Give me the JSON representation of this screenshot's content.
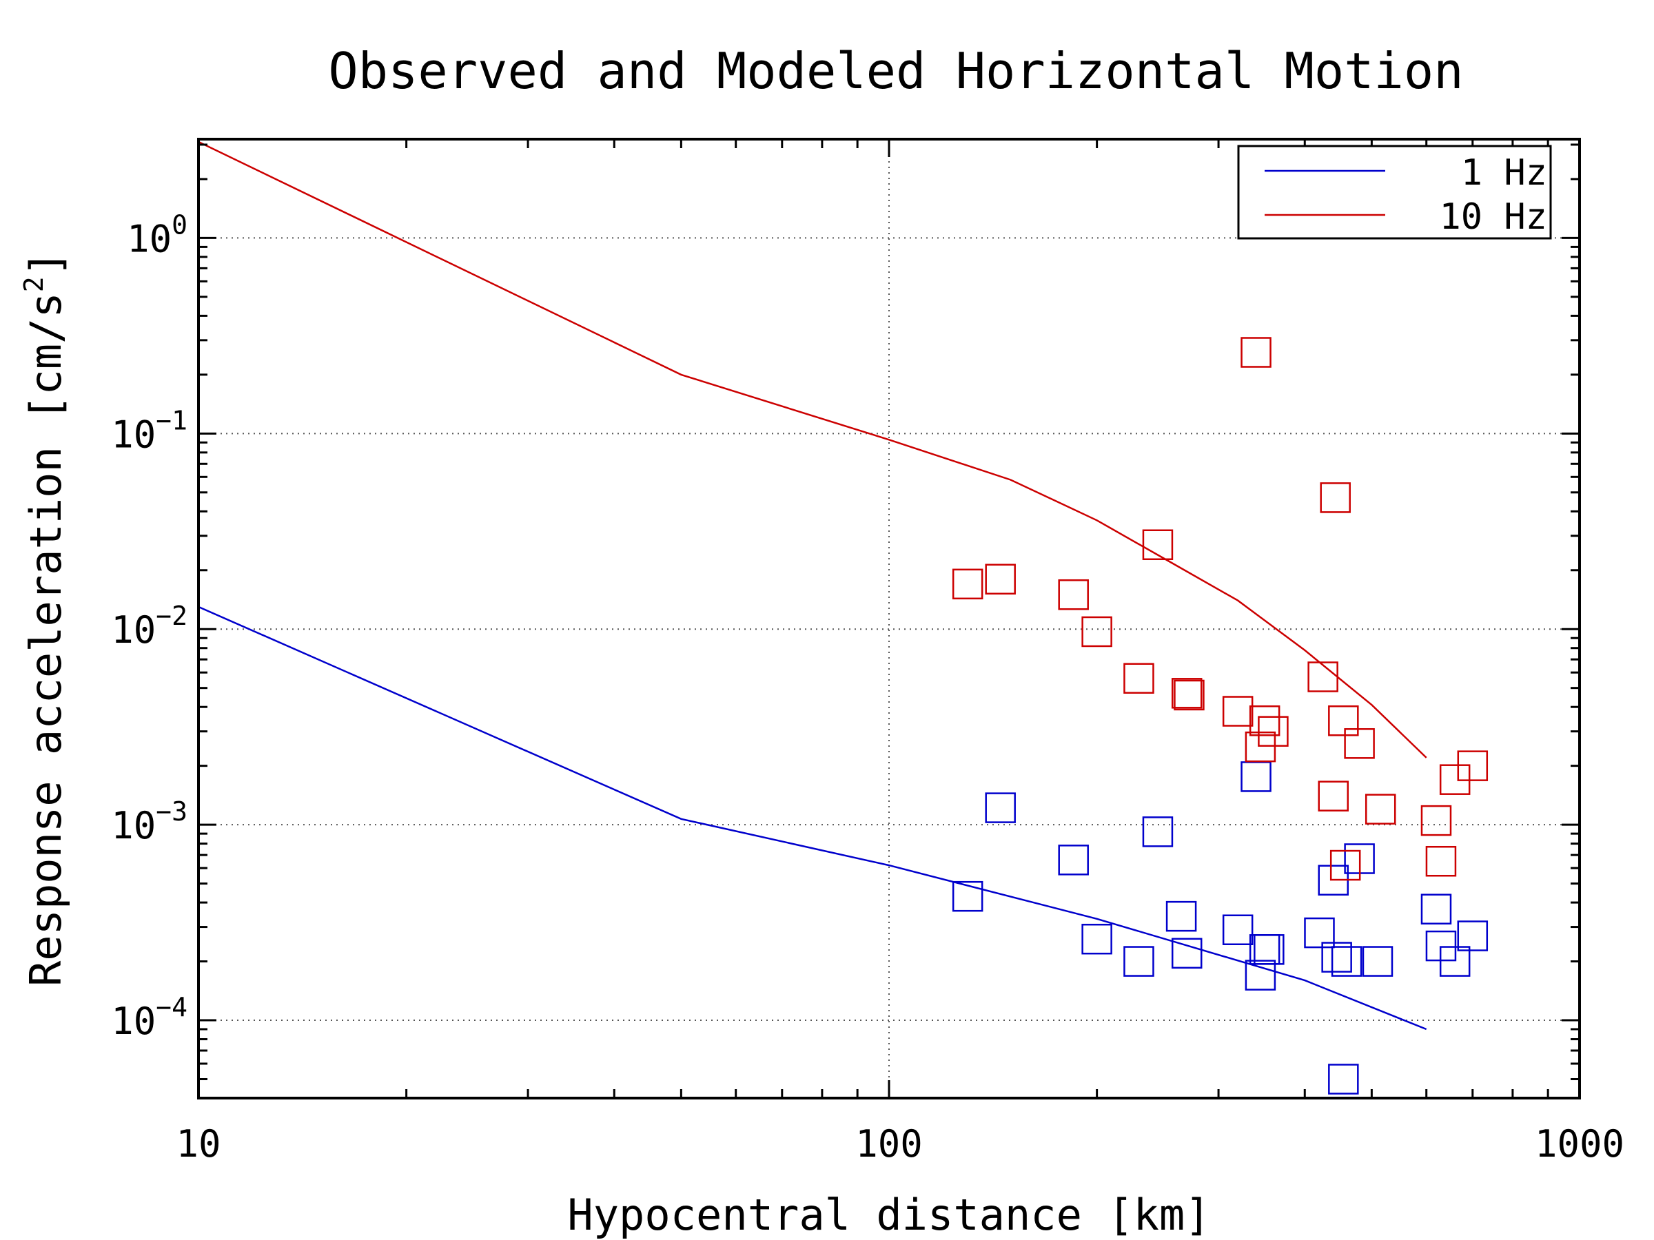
{
  "chart_data": {
    "type": "scatter",
    "title": "Observed and Modeled Horizontal Motion",
    "xlabel": "Hypocentral distance [km]",
    "ylabel_base": "Response acceleration [cm/s",
    "ylabel_sup": "2",
    "ylabel_end": "]",
    "x_scale": "log",
    "y_scale": "log",
    "xlim": [
      10,
      1000
    ],
    "ylim": [
      4e-05,
      3.2
    ],
    "x_ticks": [
      {
        "value": 10,
        "label": "10"
      },
      {
        "value": 100,
        "label": "100"
      },
      {
        "value": 1000,
        "label": "1000"
      }
    ],
    "y_ticks": [
      {
        "value": 1,
        "base": "10",
        "exp": "0"
      },
      {
        "value": 0.1,
        "base": "10",
        "exp": "−1"
      },
      {
        "value": 0.01,
        "base": "10",
        "exp": "−2"
      },
      {
        "value": 0.001,
        "base": "10",
        "exp": "−3"
      },
      {
        "value": 0.0001,
        "base": "10",
        "exp": "−4"
      }
    ],
    "grid": true,
    "legend_position": "top-right",
    "series": [
      {
        "name": "1 Hz",
        "color": "#0000cc",
        "model_line": [
          [
            10,
            0.013
          ],
          [
            50,
            0.00107
          ],
          [
            100,
            0.00062
          ],
          [
            200,
            0.00033
          ],
          [
            400,
            0.00016
          ],
          [
            600,
            9e-05
          ]
        ],
        "observed": [
          [
            130,
            0.00043
          ],
          [
            145,
            0.00122
          ],
          [
            185,
            0.00066
          ],
          [
            200,
            0.00026
          ],
          [
            230,
            0.0002
          ],
          [
            245,
            0.00092
          ],
          [
            265,
            0.00034
          ],
          [
            270,
            0.00022
          ],
          [
            320,
            0.00029
          ],
          [
            340,
            0.00176
          ],
          [
            345,
            0.00017
          ],
          [
            350,
            0.00023
          ],
          [
            355,
            0.00023
          ],
          [
            420,
            0.00028
          ],
          [
            440,
            0.00052
          ],
          [
            445,
            0.00021
          ],
          [
            455,
            5e-05
          ],
          [
            460,
            0.0002
          ],
          [
            480,
            0.00067
          ],
          [
            510,
            0.0002
          ],
          [
            620,
            0.00037
          ],
          [
            630,
            0.00024
          ],
          [
            660,
            0.0002
          ],
          [
            700,
            0.00027
          ]
        ]
      },
      {
        "name": "10 Hz",
        "color": "#cc0000",
        "model_line": [
          [
            10,
            3.1
          ],
          [
            50,
            0.2
          ],
          [
            100,
            0.093
          ],
          [
            150,
            0.058
          ],
          [
            200,
            0.036
          ],
          [
            250,
            0.023
          ],
          [
            320,
            0.014
          ],
          [
            400,
            0.0078
          ],
          [
            500,
            0.0041
          ],
          [
            600,
            0.0022
          ]
        ],
        "observed": [
          [
            130,
            0.017
          ],
          [
            145,
            0.018
          ],
          [
            185,
            0.015
          ],
          [
            200,
            0.0097
          ],
          [
            230,
            0.0056
          ],
          [
            245,
            0.027
          ],
          [
            270,
            0.0047
          ],
          [
            272,
            0.0046
          ],
          [
            320,
            0.0038
          ],
          [
            340,
            0.26
          ],
          [
            345,
            0.0025
          ],
          [
            350,
            0.0034
          ],
          [
            360,
            0.003
          ],
          [
            425,
            0.0057
          ],
          [
            440,
            0.0014
          ],
          [
            443,
            0.047
          ],
          [
            455,
            0.0034
          ],
          [
            458,
            0.00062
          ],
          [
            480,
            0.0026
          ],
          [
            515,
            0.0012
          ],
          [
            620,
            0.00105
          ],
          [
            630,
            0.00065
          ],
          [
            660,
            0.0017
          ],
          [
            700,
            0.002
          ]
        ]
      }
    ]
  }
}
